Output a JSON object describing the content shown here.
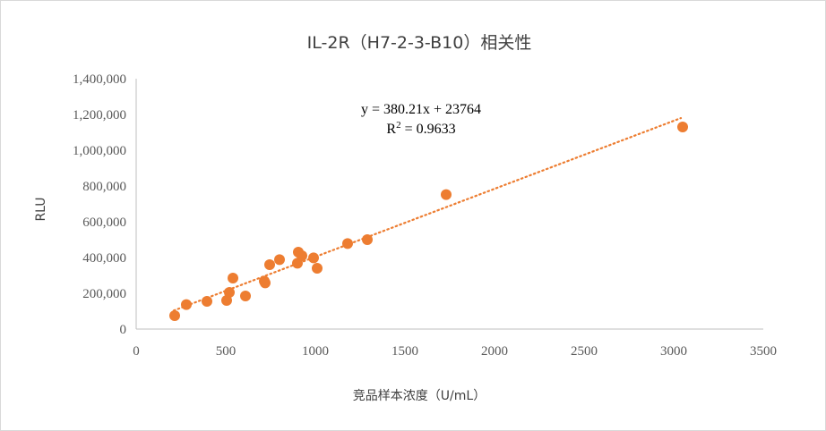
{
  "chart_data": {
    "type": "scatter",
    "title": "IL-2R（H7-2-3-B10）相关性",
    "xlabel": "竞品样本浓度（U/mL）",
    "ylabel": "RLU",
    "xlim": [
      0,
      3500
    ],
    "ylim": [
      0,
      1400000
    ],
    "x_ticks": [
      "0",
      "500",
      "1000",
      "1500",
      "2000",
      "2500",
      "3000",
      "3500"
    ],
    "y_ticks": [
      "0",
      "200,000",
      "400,000",
      "600,000",
      "800,000",
      "1,000,000",
      "1,200,000",
      "1,400,000"
    ],
    "grid": false,
    "marker_color": "#ED7D31",
    "trendline": {
      "type": "linear",
      "slope": 380.21,
      "intercept": 23764,
      "x_range": [
        210,
        3040
      ],
      "style": "dotted",
      "color": "#ED7D31",
      "equation": "y = 380.21x + 23764",
      "r2_prefix": "R",
      "r2_sup": "2",
      "r2_value": " = 0.9633"
    },
    "points": [
      {
        "x": 215,
        "y": 75000
      },
      {
        "x": 280,
        "y": 137000
      },
      {
        "x": 395,
        "y": 155000
      },
      {
        "x": 505,
        "y": 160000
      },
      {
        "x": 520,
        "y": 205000
      },
      {
        "x": 540,
        "y": 285000
      },
      {
        "x": 610,
        "y": 185000
      },
      {
        "x": 715,
        "y": 268000
      },
      {
        "x": 720,
        "y": 258000
      },
      {
        "x": 745,
        "y": 360000
      },
      {
        "x": 800,
        "y": 388000
      },
      {
        "x": 900,
        "y": 368000
      },
      {
        "x": 905,
        "y": 430000
      },
      {
        "x": 925,
        "y": 410000
      },
      {
        "x": 990,
        "y": 398000
      },
      {
        "x": 1010,
        "y": 340000
      },
      {
        "x": 1180,
        "y": 478000
      },
      {
        "x": 1290,
        "y": 500000
      },
      {
        "x": 1730,
        "y": 752000
      },
      {
        "x": 3050,
        "y": 1130000
      }
    ]
  }
}
